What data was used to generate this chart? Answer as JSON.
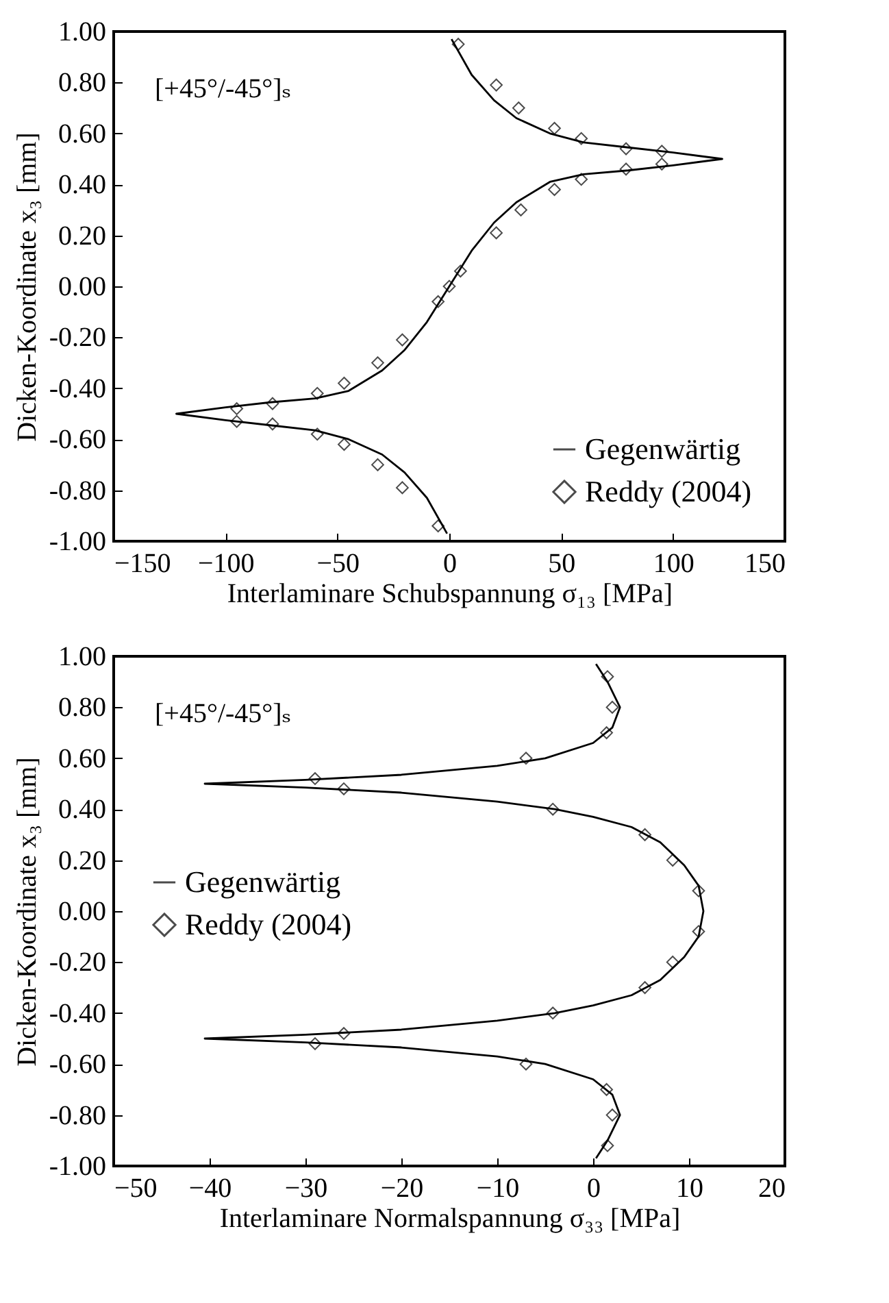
{
  "chart_data": [
    {
      "type": "line",
      "xlabel": "Interlaminare Schubspannung σ₁₃ [MPa]",
      "ylabel": "Dicken-Koordinate x₃ [mm]",
      "annotations": [
        "[+45°/-45°]ₛ"
      ],
      "xlim": [
        -150,
        150
      ],
      "xticks": [
        -150,
        -100,
        -50,
        0,
        50,
        100,
        150
      ],
      "ylim": [
        -1,
        1
      ],
      "yticks": [
        {
          "value": -1,
          "label": "-1.00"
        },
        {
          "value": -0.8,
          "label": "-0.80"
        },
        {
          "value": -0.6,
          "label": "-0.60"
        },
        {
          "value": -0.4,
          "label": "-0.40"
        },
        {
          "value": -0.2,
          "label": "-0.20"
        },
        {
          "value": 0,
          "label": "0.00"
        },
        {
          "value": 0.2,
          "label": "0.20"
        },
        {
          "value": 0.4,
          "label": "0.40"
        },
        {
          "value": 0.6,
          "label": "0.60"
        },
        {
          "value": 0.8,
          "label": "0.80"
        },
        {
          "value": 1,
          "label": "1.00"
        }
      ],
      "grid": false,
      "legend": "bottom right",
      "series": [
        {
          "name": "Gegenwärtig",
          "type": "line",
          "color": "#000000",
          "marker": "none",
          "x": [
            1,
            10,
            20,
            30,
            45,
            60,
            80,
            100,
            122,
            100,
            80,
            60,
            45,
            30,
            20,
            10,
            0,
            -10,
            -20,
            -30,
            -45,
            -60,
            -80,
            -100,
            -122,
            -100,
            -80,
            -60,
            -45,
            -30,
            -20,
            -10,
            -1
          ],
          "values": [
            0.97,
            0.83,
            0.73,
            0.66,
            0.6,
            0.565,
            0.545,
            0.525,
            0.5,
            0.475,
            0.455,
            0.44,
            0.41,
            0.33,
            0.25,
            0.14,
            0,
            -0.14,
            -0.25,
            -0.33,
            -0.41,
            -0.44,
            -0.455,
            -0.475,
            -0.5,
            -0.525,
            -0.545,
            -0.565,
            -0.6,
            -0.66,
            -0.73,
            -0.83,
            -0.97
          ]
        },
        {
          "name": "Reddy (2004)",
          "type": "scatter",
          "color": "#000000",
          "marker": "diamond",
          "x": [
            4,
            21,
            31,
            47,
            59,
            79,
            95,
            95,
            79,
            59,
            47,
            32,
            21,
            5,
            0,
            -5,
            -21,
            -32,
            -47,
            -59,
            -79,
            -95,
            -95,
            -79,
            -59,
            -47,
            -32,
            -21,
            -5
          ],
          "values": [
            0.95,
            0.79,
            0.7,
            0.62,
            0.58,
            0.54,
            0.53,
            0.48,
            0.46,
            0.42,
            0.38,
            0.3,
            0.21,
            0.06,
            0,
            -0.06,
            -0.21,
            -0.3,
            -0.38,
            -0.42,
            -0.46,
            -0.48,
            -0.53,
            -0.54,
            -0.58,
            -0.62,
            -0.7,
            -0.79,
            -0.94
          ]
        }
      ]
    },
    {
      "type": "line",
      "xlabel": "Interlaminare Normalspannung σ₃₃ [MPa]",
      "ylabel": "Dicken-Koordinate x₃ [mm]",
      "annotations": [
        "[+45°/-45°]ₛ"
      ],
      "xlim": [
        -50,
        20
      ],
      "xticks": [
        -50,
        -40,
        -30,
        -20,
        -10,
        0,
        10,
        20
      ],
      "ylim": [
        -1,
        1
      ],
      "yticks": [
        {
          "value": -1,
          "label": "-1.00"
        },
        {
          "value": -0.8,
          "label": "-0.80"
        },
        {
          "value": -0.6,
          "label": "-0.60"
        },
        {
          "value": -0.4,
          "label": "-0.40"
        },
        {
          "value": -0.2,
          "label": "-0.20"
        },
        {
          "value": 0,
          "label": "0.00"
        },
        {
          "value": 0.2,
          "label": "0.20"
        },
        {
          "value": 0.4,
          "label": "0.40"
        },
        {
          "value": 0.6,
          "label": "0.60"
        },
        {
          "value": 0.8,
          "label": "0.80"
        },
        {
          "value": 1,
          "label": "1.00"
        }
      ],
      "grid": false,
      "legend": "left",
      "series": [
        {
          "name": "Gegenwärtig",
          "type": "line",
          "color": "#000000",
          "marker": "none",
          "x": [
            0.3,
            1.5,
            2.8,
            2,
            0,
            -5,
            -10,
            -20,
            -30,
            -40.5,
            -30,
            -20,
            -10,
            -4,
            0,
            4,
            7,
            9.5,
            11,
            11.5,
            11,
            9.5,
            7,
            4,
            0,
            -4,
            -10,
            -20,
            -30,
            -40.5,
            -30,
            -20,
            -10,
            -5,
            0,
            2,
            2.8,
            1.5,
            0.3
          ],
          "values": [
            0.97,
            0.9,
            0.8,
            0.72,
            0.66,
            0.6,
            0.57,
            0.535,
            0.515,
            0.5,
            0.485,
            0.465,
            0.43,
            0.4,
            0.37,
            0.33,
            0.27,
            0.18,
            0.1,
            0,
            -0.1,
            -0.18,
            -0.27,
            -0.33,
            -0.37,
            -0.4,
            -0.43,
            -0.465,
            -0.485,
            -0.5,
            -0.515,
            -0.535,
            -0.57,
            -0.6,
            -0.66,
            -0.72,
            -0.8,
            -0.9,
            -0.97
          ]
        },
        {
          "name": "Reddy (2004)",
          "type": "scatter",
          "color": "#000000",
          "marker": "diamond",
          "x": [
            1.5,
            2,
            1.4,
            -7,
            -29,
            -26,
            -4.2,
            5.4,
            8.3,
            11,
            11,
            8.3,
            5.4,
            -4.2,
            -26,
            -29,
            -7,
            1.4,
            2,
            1.5
          ],
          "values": [
            0.92,
            0.8,
            0.7,
            0.6,
            0.52,
            0.48,
            0.4,
            0.3,
            0.2,
            0.08,
            -0.08,
            -0.2,
            -0.3,
            -0.4,
            -0.48,
            -0.52,
            -0.6,
            -0.7,
            -0.8,
            -0.92
          ]
        }
      ]
    }
  ]
}
